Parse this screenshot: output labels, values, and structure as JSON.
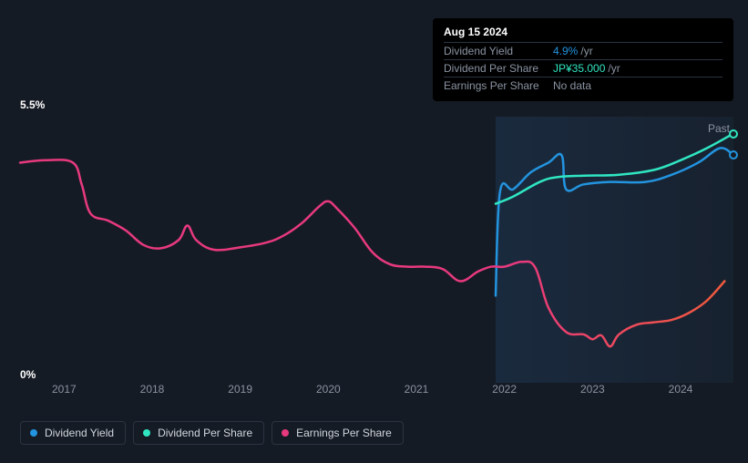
{
  "tooltip": {
    "date": "Aug 15 2024",
    "rows": [
      {
        "label": "Dividend Yield",
        "value": "4.9%",
        "suffix": "/yr",
        "value_color": "#2394df"
      },
      {
        "label": "Dividend Per Share",
        "value": "JP¥35.000",
        "suffix": "/yr",
        "value_color": "#30e6c2"
      },
      {
        "label": "Earnings Per Share",
        "value": "No data",
        "suffix": "",
        "value_color": "#8a93a2"
      }
    ]
  },
  "chart": {
    "type": "line",
    "background_color": "#151b24",
    "grid_color": "#2a3441",
    "text_color": "#ffffff",
    "muted_text_color": "#8a93a2",
    "y_axis": {
      "min": 0,
      "max": 5.5,
      "top_label": "5.5%",
      "bottom_label": "0%",
      "label_fontsize": 12
    },
    "x_axis": {
      "min": 2016.5,
      "max": 2024.6,
      "ticks": [
        2017,
        2018,
        2019,
        2020,
        2021,
        2022,
        2023,
        2024
      ],
      "label_fontsize": 12
    },
    "highlight": {
      "start": 2021.9,
      "end": 2024.6,
      "fill": "rgba(35,70,110,0.35)",
      "label": "Past",
      "label_color": "#8a93a2"
    },
    "series": [
      {
        "name": "Dividend Yield",
        "color": "#2394df",
        "stroke_width": 2.5,
        "end_marker": true,
        "points": [
          [
            2021.9,
            1.8
          ],
          [
            2021.95,
            3.95
          ],
          [
            2022.1,
            4.0
          ],
          [
            2022.3,
            4.35
          ],
          [
            2022.5,
            4.55
          ],
          [
            2022.65,
            4.7
          ],
          [
            2022.7,
            4.0
          ],
          [
            2022.9,
            4.1
          ],
          [
            2023.2,
            4.15
          ],
          [
            2023.6,
            4.15
          ],
          [
            2023.9,
            4.3
          ],
          [
            2024.2,
            4.55
          ],
          [
            2024.45,
            4.85
          ],
          [
            2024.6,
            4.7
          ]
        ]
      },
      {
        "name": "Dividend Per Share",
        "color": "#30e6c2",
        "stroke_width": 2.5,
        "end_marker": true,
        "points": [
          [
            2021.9,
            3.7
          ],
          [
            2022.1,
            3.85
          ],
          [
            2022.4,
            4.15
          ],
          [
            2022.6,
            4.25
          ],
          [
            2022.9,
            4.28
          ],
          [
            2023.3,
            4.3
          ],
          [
            2023.7,
            4.4
          ],
          [
            2024.0,
            4.6
          ],
          [
            2024.3,
            4.85
          ],
          [
            2024.6,
            5.15
          ]
        ]
      },
      {
        "name": "Earnings Per Share",
        "color_start": "#e8397e",
        "color_end": "#f05a3c",
        "gradient": true,
        "stroke_width": 2.5,
        "end_marker": false,
        "points": [
          [
            2016.5,
            4.55
          ],
          [
            2016.8,
            4.6
          ],
          [
            2017.1,
            4.55
          ],
          [
            2017.2,
            4.1
          ],
          [
            2017.3,
            3.5
          ],
          [
            2017.5,
            3.35
          ],
          [
            2017.7,
            3.15
          ],
          [
            2017.9,
            2.85
          ],
          [
            2018.1,
            2.78
          ],
          [
            2018.3,
            2.95
          ],
          [
            2018.4,
            3.25
          ],
          [
            2018.5,
            2.95
          ],
          [
            2018.7,
            2.75
          ],
          [
            2019.0,
            2.8
          ],
          [
            2019.3,
            2.9
          ],
          [
            2019.5,
            3.05
          ],
          [
            2019.7,
            3.3
          ],
          [
            2019.9,
            3.65
          ],
          [
            2020.0,
            3.75
          ],
          [
            2020.1,
            3.6
          ],
          [
            2020.3,
            3.2
          ],
          [
            2020.5,
            2.7
          ],
          [
            2020.7,
            2.45
          ],
          [
            2020.9,
            2.4
          ],
          [
            2021.1,
            2.4
          ],
          [
            2021.3,
            2.35
          ],
          [
            2021.5,
            2.1
          ],
          [
            2021.7,
            2.3
          ],
          [
            2021.85,
            2.4
          ],
          [
            2022.0,
            2.4
          ],
          [
            2022.2,
            2.5
          ],
          [
            2022.35,
            2.38
          ],
          [
            2022.5,
            1.55
          ],
          [
            2022.7,
            1.05
          ],
          [
            2022.9,
            1.0
          ],
          [
            2023.0,
            0.9
          ],
          [
            2023.1,
            0.98
          ],
          [
            2023.2,
            0.75
          ],
          [
            2023.3,
            1.0
          ],
          [
            2023.5,
            1.2
          ],
          [
            2023.7,
            1.25
          ],
          [
            2023.9,
            1.3
          ],
          [
            2024.1,
            1.45
          ],
          [
            2024.3,
            1.7
          ],
          [
            2024.5,
            2.1
          ]
        ]
      }
    ],
    "legend": {
      "items": [
        {
          "label": "Dividend Yield",
          "color": "#2394df"
        },
        {
          "label": "Dividend Per Share",
          "color": "#30e6c2"
        },
        {
          "label": "Earnings Per Share",
          "color": "#e8397e"
        }
      ],
      "border_color": "#2a3441",
      "fontsize": 12
    }
  }
}
